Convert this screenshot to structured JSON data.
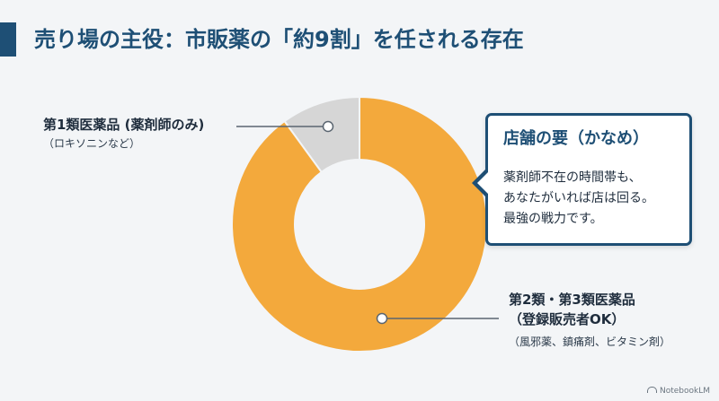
{
  "title": "売り場の主役：市販薬の「約9割」を任される存在",
  "chart_data": {
    "type": "pie",
    "style": "donut",
    "slices": [
      {
        "label_main": "第1類医薬品 (薬剤師のみ)",
        "label_sub": "（ロキソニンなど）",
        "value": 10,
        "color": "#d6d6d6"
      },
      {
        "label_main": "第2類・第3類医薬品",
        "label_sub2": "（登録販売者OK）",
        "label_sub": "（風邪薬、鎮痛剤、ビタミン剤）",
        "value": 90,
        "color": "#f3a93c"
      }
    ]
  },
  "callout": {
    "title": "店舗の要（かなめ）",
    "lines": [
      "薬剤師不在の時間帯も、",
      "あなたがいれば店は回る。",
      "最強の戦力です。"
    ]
  },
  "watermark": {
    "icon": "notebooklm-icon",
    "text": "NotebookLM"
  }
}
